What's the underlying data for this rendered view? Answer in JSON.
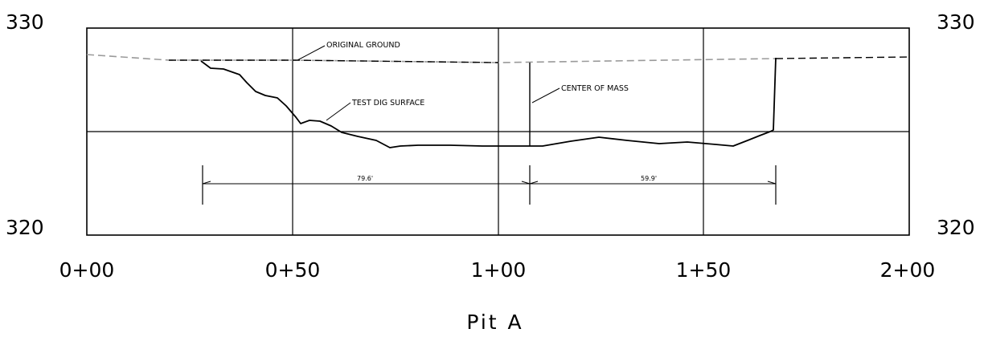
{
  "title": "Pit A",
  "y_axis": {
    "top_left": "330",
    "top_right": "330",
    "bottom_left": "320",
    "bottom_right": "320"
  },
  "x_axis": {
    "ticks": [
      "0+00",
      "0+50",
      "1+00",
      "1+50",
      "2+00"
    ]
  },
  "annotations": {
    "original_ground": "ORIGINAL GROUND",
    "test_dig_surface": "TEST DIG SURFACE",
    "center_of_mass": "CENTER OF MASS"
  },
  "dimensions": {
    "left": "79.6'",
    "right": "59.9'"
  },
  "colors": {
    "line": "#000000",
    "dashed_light": "#9a9a9a",
    "dashed_dark": "#000000"
  }
}
